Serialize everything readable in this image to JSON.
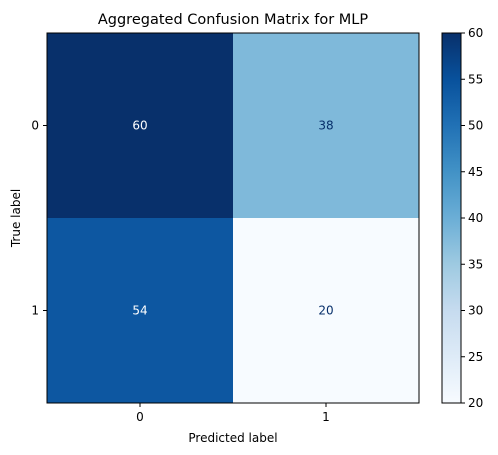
{
  "chart_data": {
    "type": "heatmap",
    "title": "Aggregated Confusion Matrix for MLP",
    "xlabel": "Predicted label",
    "ylabel": "True label",
    "x_categories": [
      "0",
      "1"
    ],
    "y_categories": [
      "0",
      "1"
    ],
    "matrix": [
      [
        60,
        38
      ],
      [
        54,
        20
      ]
    ],
    "colormap": "Blues",
    "color_range": [
      20,
      60
    ],
    "colorbar_ticks": [
      "20",
      "25",
      "30",
      "35",
      "40",
      "45",
      "50",
      "55",
      "60"
    ],
    "grid": false
  }
}
